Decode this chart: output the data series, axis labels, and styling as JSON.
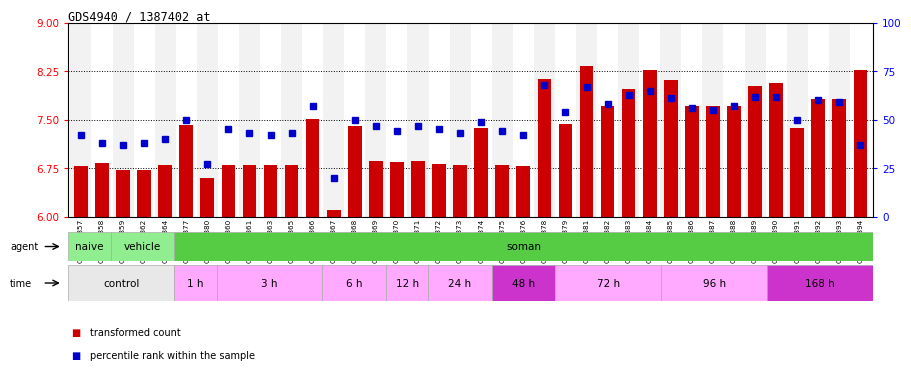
{
  "title": "GDS4940 / 1387402_at",
  "ylim_left": [
    6,
    9
  ],
  "ylim_right": [
    0,
    100
  ],
  "yticks_left": [
    6,
    6.75,
    7.5,
    8.25,
    9
  ],
  "yticks_right": [
    0,
    25,
    50,
    75,
    100
  ],
  "bar_color": "#cc0000",
  "marker_color": "#0000cc",
  "categories": [
    "GSM338857",
    "GSM338858",
    "GSM338859",
    "GSM338862",
    "GSM338864",
    "GSM338877",
    "GSM338880",
    "GSM338860",
    "GSM338861",
    "GSM338863",
    "GSM338865",
    "GSM338866",
    "GSM338867",
    "GSM338868",
    "GSM338869",
    "GSM338870",
    "GSM338871",
    "GSM338872",
    "GSM338873",
    "GSM338874",
    "GSM338875",
    "GSM338876",
    "GSM338878",
    "GSM338879",
    "GSM338881",
    "GSM338882",
    "GSM338883",
    "GSM338884",
    "GSM338885",
    "GSM338886",
    "GSM338887",
    "GSM338888",
    "GSM338889",
    "GSM338890",
    "GSM338891",
    "GSM338892",
    "GSM338893",
    "GSM338894"
  ],
  "bar_values": [
    6.78,
    6.83,
    6.73,
    6.73,
    6.8,
    7.42,
    6.6,
    6.8,
    6.8,
    6.8,
    6.8,
    7.52,
    6.1,
    7.4,
    6.87,
    6.85,
    6.87,
    6.82,
    6.8,
    7.38,
    6.8,
    6.78,
    8.13,
    7.43,
    8.33,
    7.72,
    7.97,
    8.27,
    8.12,
    7.72,
    7.72,
    7.72,
    8.02,
    8.07,
    7.38,
    7.82,
    7.82,
    8.27
  ],
  "marker_pct": [
    42,
    38,
    37,
    38,
    40,
    50,
    27,
    45,
    43,
    42,
    43,
    57,
    20,
    50,
    47,
    44,
    47,
    45,
    43,
    49,
    44,
    42,
    68,
    54,
    67,
    58,
    63,
    65,
    61,
    56,
    55,
    57,
    62,
    62,
    50,
    60,
    59,
    37
  ],
  "agent_segs": [
    {
      "start": 0,
      "end": 2,
      "color": "#90ee90",
      "label": "naive"
    },
    {
      "start": 2,
      "end": 5,
      "color": "#90ee90",
      "label": "vehicle"
    },
    {
      "start": 5,
      "end": 38,
      "color": "#55cc44",
      "label": "soman"
    }
  ],
  "time_segs": [
    {
      "start": 0,
      "end": 5,
      "color": "#e8e8e8",
      "label": "control"
    },
    {
      "start": 5,
      "end": 7,
      "color": "#ffaaff",
      "label": "1 h"
    },
    {
      "start": 7,
      "end": 12,
      "color": "#ffaaff",
      "label": "3 h"
    },
    {
      "start": 12,
      "end": 15,
      "color": "#ffaaff",
      "label": "6 h"
    },
    {
      "start": 15,
      "end": 17,
      "color": "#ffaaff",
      "label": "12 h"
    },
    {
      "start": 17,
      "end": 20,
      "color": "#ffaaff",
      "label": "24 h"
    },
    {
      "start": 20,
      "end": 23,
      "color": "#cc33cc",
      "label": "48 h"
    },
    {
      "start": 23,
      "end": 28,
      "color": "#ffaaff",
      "label": "72 h"
    },
    {
      "start": 28,
      "end": 33,
      "color": "#ffaaff",
      "label": "96 h"
    },
    {
      "start": 33,
      "end": 38,
      "color": "#cc33cc",
      "label": "168 h"
    }
  ]
}
